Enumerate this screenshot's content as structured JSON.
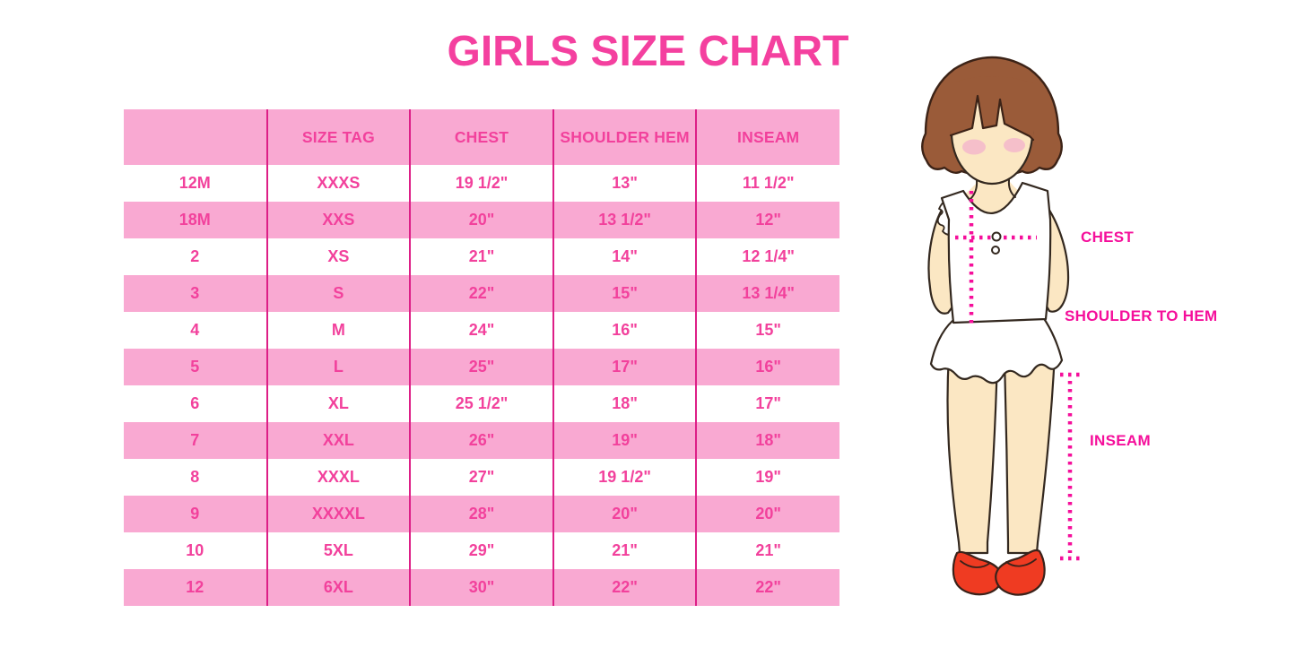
{
  "page": {
    "title": "GIRLS SIZE CHART"
  },
  "size_table": {
    "columns": [
      "",
      "SIZE TAG",
      "CHEST",
      "SHOULDER HEM",
      "INSEAM"
    ],
    "rows": [
      [
        "12M",
        "XXXS",
        "19 1/2\"",
        "13\"",
        "11 1/2\""
      ],
      [
        "18M",
        "XXS",
        "20\"",
        "13 1/2\"",
        "12\""
      ],
      [
        "2",
        "XS",
        "21\"",
        "14\"",
        "12 1/4\""
      ],
      [
        "3",
        "S",
        "22\"",
        "15\"",
        "13 1/4\""
      ],
      [
        "4",
        "M",
        "24\"",
        "16\"",
        "15\""
      ],
      [
        "5",
        "L",
        "25\"",
        "17\"",
        "16\""
      ],
      [
        "6",
        "XL",
        "25 1/2\"",
        "18\"",
        "17\""
      ],
      [
        "7",
        "XXL",
        "26\"",
        "19\"",
        "18\""
      ],
      [
        "8",
        "XXXL",
        "27\"",
        "19 1/2\"",
        "19\""
      ],
      [
        "9",
        "XXXXL",
        "28\"",
        "20\"",
        "20\""
      ],
      [
        "10",
        "5XL",
        "29\"",
        "21\"",
        "21\""
      ],
      [
        "12",
        "6XL",
        "30\"",
        "22\"",
        "22\""
      ]
    ]
  },
  "measurement_labels": {
    "chest": "CHEST",
    "shoulder_to_hem": "SHOULDER TO HEM",
    "inseam": "INSEAM"
  },
  "colors": {
    "title_pink": "#F4409F",
    "table_text_pink": "#F2419C",
    "row_band_pink": "#F9A9D2",
    "table_line_magenta": "#DD1F87",
    "label_magenta": "#F50F9B",
    "hair_brown": "#9A5B39",
    "skin_tone": "#FBE7C3",
    "blush_pink": "#F5BFCA",
    "shoe_red": "#EF3B22"
  }
}
